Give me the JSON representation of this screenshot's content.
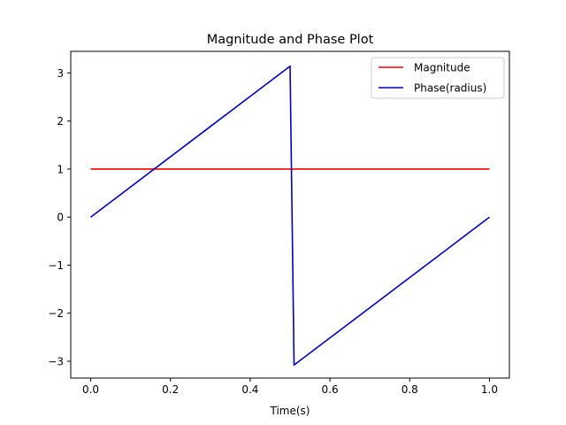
{
  "chart_data": {
    "type": "line",
    "title": "Magnitude and Phase Plot",
    "xlabel": "Time(s)",
    "ylabel": "",
    "xlim": [
      -0.05,
      1.05
    ],
    "ylim": [
      -3.35,
      3.45
    ],
    "grid": false,
    "legend_position": "top-right",
    "x_ticks": [
      0.0,
      0.2,
      0.4,
      0.6,
      0.8,
      1.0
    ],
    "x_tick_labels": [
      "0.0",
      "0.2",
      "0.4",
      "0.6",
      "0.8",
      "1.0"
    ],
    "y_ticks": [
      -3,
      -2,
      -1,
      0,
      1,
      2,
      3
    ],
    "y_tick_labels": [
      "−3",
      "−2",
      "−1",
      "0",
      "1",
      "2",
      "3"
    ],
    "series": [
      {
        "name": "Magnitude",
        "color": "#ff0000",
        "x": [
          0.0,
          1.0
        ],
        "y": [
          1.0,
          1.0
        ]
      },
      {
        "name": "Phase(radius)",
        "color": "#0000cc",
        "x": [
          0.0,
          0.5,
          0.51,
          1.0
        ],
        "y": [
          0.0,
          3.1416,
          -3.0788,
          0.0
        ]
      }
    ]
  }
}
